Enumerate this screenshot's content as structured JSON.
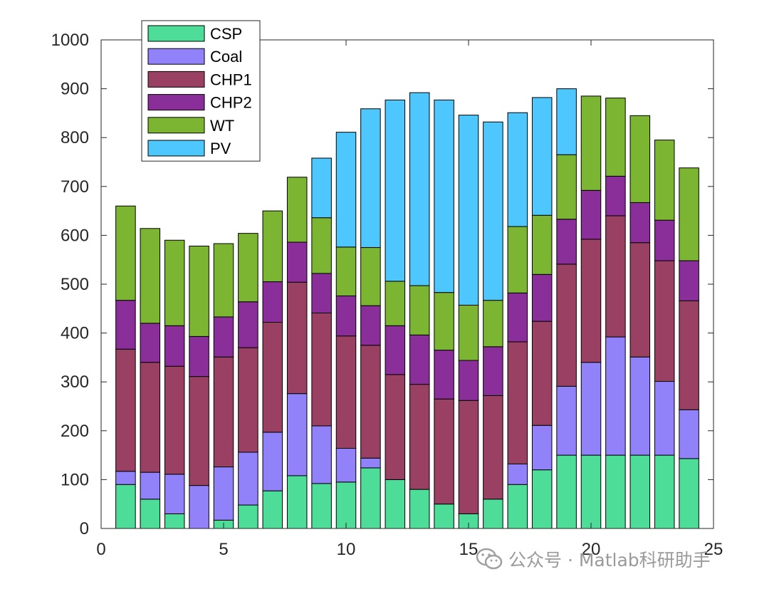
{
  "chart_data": {
    "type": "bar",
    "stacked": true,
    "title": "",
    "xlabel": "",
    "ylabel": "",
    "xlim": [
      0,
      25
    ],
    "ylim": [
      0,
      1000
    ],
    "xticks": [
      0,
      5,
      10,
      15,
      20,
      25
    ],
    "yticks": [
      0,
      100,
      200,
      300,
      400,
      500,
      600,
      700,
      800,
      900,
      1000
    ],
    "legend_position": "top-left",
    "x": [
      1,
      2,
      3,
      4,
      5,
      6,
      7,
      8,
      9,
      10,
      11,
      12,
      13,
      14,
      15,
      16,
      17,
      18,
      19,
      20,
      21,
      22,
      23,
      24
    ],
    "series": [
      {
        "name": "CSP",
        "color": "#4ddd98",
        "values": [
          90,
          60,
          30,
          0,
          17,
          48,
          77,
          108,
          92,
          95,
          124,
          100,
          80,
          50,
          30,
          60,
          90,
          120,
          150,
          150,
          150,
          150,
          150,
          143
        ]
      },
      {
        "name": "Coal",
        "color": "#9182fa",
        "values": [
          27,
          55,
          81,
          88,
          109,
          108,
          120,
          168,
          118,
          69,
          20,
          0,
          0,
          0,
          0,
          0,
          42,
          91,
          141,
          190,
          242,
          201,
          151,
          100
        ]
      },
      {
        "name": "CHP1",
        "color": "#9a4063",
        "values": [
          250,
          225,
          221,
          223,
          225,
          214,
          225,
          228,
          231,
          230,
          231,
          215,
          215,
          215,
          232,
          212,
          250,
          213,
          250,
          252,
          248,
          234,
          247,
          223
        ]
      },
      {
        "name": "CHP2",
        "color": "#8a2e9a",
        "values": [
          100,
          80,
          83,
          82,
          82,
          94,
          83,
          82,
          81,
          82,
          81,
          100,
          101,
          100,
          82,
          100,
          100,
          96,
          92,
          100,
          81,
          82,
          83,
          82
        ]
      },
      {
        "name": "WT",
        "color": "#7bb531",
        "values": [
          193,
          194,
          175,
          185,
          150,
          140,
          145,
          133,
          114,
          100,
          119,
          91,
          101,
          118,
          113,
          95,
          136,
          121,
          132,
          193,
          160,
          178,
          164,
          190
        ]
      },
      {
        "name": "PV",
        "color": "#4dc7fd",
        "values": [
          0,
          0,
          0,
          0,
          0,
          0,
          0,
          0,
          122,
          235,
          284,
          371,
          395,
          394,
          389,
          365,
          233,
          241,
          135,
          0,
          0,
          0,
          0,
          0
        ]
      }
    ]
  },
  "watermark": {
    "text": "公众号 · Matlab科研助手",
    "icon": "wechat-icon"
  }
}
